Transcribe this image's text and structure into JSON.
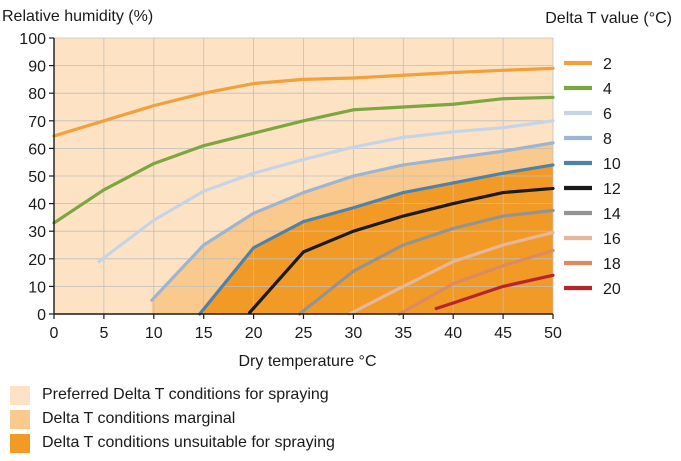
{
  "chart_data": {
    "type": "area",
    "ylabel": "Relative humidity (%)",
    "xlabel": "Dry temperature °C",
    "legend_title": "Delta T value (°C)",
    "xlim": [
      0,
      50
    ],
    "ylim": [
      0,
      100
    ],
    "x_ticks": [
      0,
      5,
      10,
      15,
      20,
      25,
      30,
      35,
      40,
      45,
      50
    ],
    "y_ticks": [
      0,
      10,
      20,
      30,
      40,
      50,
      60,
      70,
      80,
      90,
      100
    ],
    "grid": true,
    "legend_position": "right",
    "series": [
      {
        "name": "2",
        "color": "#f0a03c",
        "points": [
          [
            0,
            64.5
          ],
          [
            5,
            70
          ],
          [
            10,
            75.5
          ],
          [
            15,
            80
          ],
          [
            20,
            83.5
          ],
          [
            25,
            85
          ],
          [
            30,
            85.5
          ],
          [
            35,
            86.5
          ],
          [
            40,
            87.5
          ],
          [
            45,
            88.3
          ],
          [
            50,
            89
          ]
        ]
      },
      {
        "name": "4",
        "color": "#7ba641",
        "points": [
          [
            0,
            33
          ],
          [
            5,
            45
          ],
          [
            10,
            54.5
          ],
          [
            15,
            61
          ],
          [
            20,
            65.5
          ],
          [
            25,
            70
          ],
          [
            30,
            74
          ],
          [
            35,
            75
          ],
          [
            40,
            76
          ],
          [
            45,
            78
          ],
          [
            50,
            78.5
          ]
        ]
      },
      {
        "name": "6",
        "color": "#c6d4e8",
        "points": [
          [
            4.5,
            19
          ],
          [
            10,
            34
          ],
          [
            15,
            44.5
          ],
          [
            20,
            51
          ],
          [
            25,
            56
          ],
          [
            30,
            60.5
          ],
          [
            35,
            64
          ],
          [
            40,
            66
          ],
          [
            45,
            67.5
          ],
          [
            50,
            70
          ]
        ]
      },
      {
        "name": "8",
        "color": "#9db4d2",
        "points": [
          [
            9.8,
            5
          ],
          [
            15,
            25
          ],
          [
            20,
            36.5
          ],
          [
            25,
            44
          ],
          [
            30,
            50
          ],
          [
            35,
            54
          ],
          [
            40,
            56.5
          ],
          [
            45,
            59
          ],
          [
            50,
            62
          ]
        ]
      },
      {
        "name": "10",
        "color": "#4f82ab",
        "points": [
          [
            14.6,
            0
          ],
          [
            20,
            24
          ],
          [
            25,
            33.5
          ],
          [
            30,
            38.5
          ],
          [
            35,
            44
          ],
          [
            40,
            47.5
          ],
          [
            45,
            51
          ],
          [
            50,
            54
          ]
        ]
      },
      {
        "name": "12",
        "color": "#1a1a1a",
        "points": [
          [
            19.6,
            0.5
          ],
          [
            25,
            22.5
          ],
          [
            30,
            30
          ],
          [
            35,
            35.5
          ],
          [
            40,
            40
          ],
          [
            45,
            44
          ],
          [
            50,
            45.5
          ]
        ]
      },
      {
        "name": "14",
        "color": "#939393",
        "points": [
          [
            24.6,
            0
          ],
          [
            30,
            15.5
          ],
          [
            35,
            25
          ],
          [
            40,
            31
          ],
          [
            45,
            35.5
          ],
          [
            50,
            37.5
          ]
        ]
      },
      {
        "name": "16",
        "color": "#e6b79b",
        "points": [
          [
            29.6,
            0
          ],
          [
            35,
            10
          ],
          [
            40,
            19
          ],
          [
            45,
            25
          ],
          [
            50,
            29.5
          ]
        ]
      },
      {
        "name": "18",
        "color": "#db8a62",
        "points": [
          [
            34.6,
            0
          ],
          [
            40,
            11
          ],
          [
            45,
            17.5
          ],
          [
            50,
            23
          ]
        ]
      },
      {
        "name": "20",
        "color": "#b8242b",
        "points": [
          [
            38.3,
            2
          ],
          [
            40,
            4
          ],
          [
            45,
            10
          ],
          [
            50,
            14
          ]
        ]
      }
    ],
    "regions": [
      {
        "label": "Preferred Delta T conditions for spraying",
        "color": "#fde3c3"
      },
      {
        "label": "Delta T conditions marginal",
        "color": "#f9c98d"
      },
      {
        "label": "Delta T conditions unsuitable for spraying",
        "color": "#f29a26"
      }
    ]
  }
}
